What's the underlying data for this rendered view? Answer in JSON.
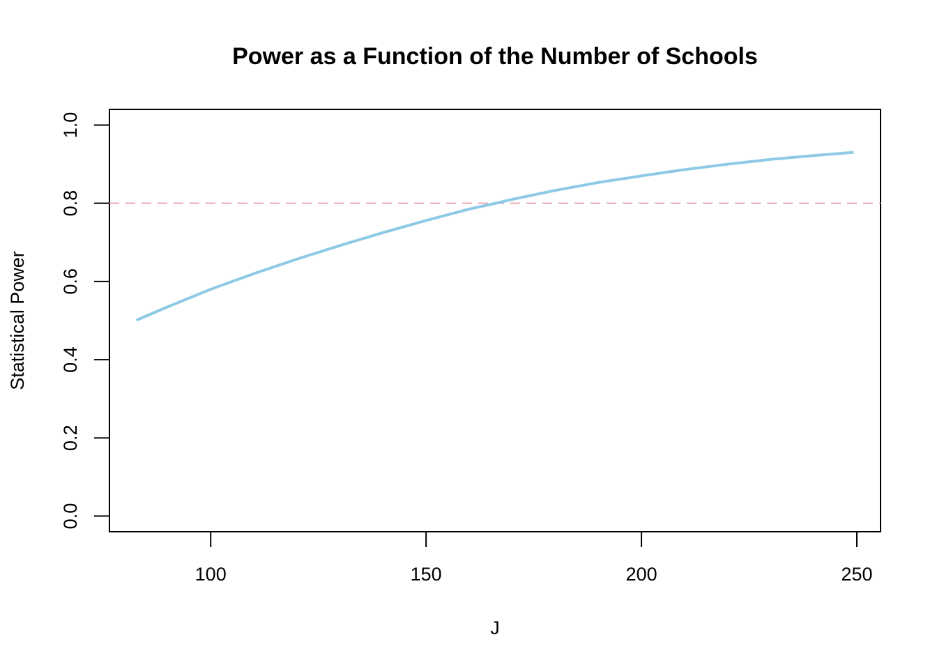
{
  "chart_data": {
    "type": "line",
    "title": "Power as a Function of the Number of Schools",
    "xlabel": "J",
    "ylabel": "Statistical Power",
    "xlim": [
      76.5,
      255.5
    ],
    "ylim": [
      -0.04,
      1.04
    ],
    "x_ticks": [
      100,
      150,
      200,
      250
    ],
    "y_ticks": [
      0.0,
      0.2,
      0.4,
      0.6,
      0.8,
      1.0
    ],
    "x_tick_labels": [
      "100",
      "150",
      "200",
      "250"
    ],
    "y_tick_labels": [
      "0.0",
      "0.2",
      "0.4",
      "0.6",
      "0.8",
      "1.0"
    ],
    "grid": false,
    "series": [
      {
        "color": "#8ecae6",
        "x": [
          83,
          90,
          100,
          110,
          120,
          130,
          140,
          150,
          160,
          167,
          170,
          180,
          190,
          200,
          210,
          220,
          230,
          240,
          249
        ],
        "values": [
          0.502,
          0.535,
          0.58,
          0.62,
          0.657,
          0.692,
          0.725,
          0.756,
          0.785,
          0.802,
          0.81,
          0.833,
          0.853,
          0.87,
          0.886,
          0.9,
          0.912,
          0.922,
          0.93
        ]
      }
    ],
    "reference_line": {
      "y": 0.8,
      "color": "#e8a8b8",
      "style": "dashed"
    }
  }
}
